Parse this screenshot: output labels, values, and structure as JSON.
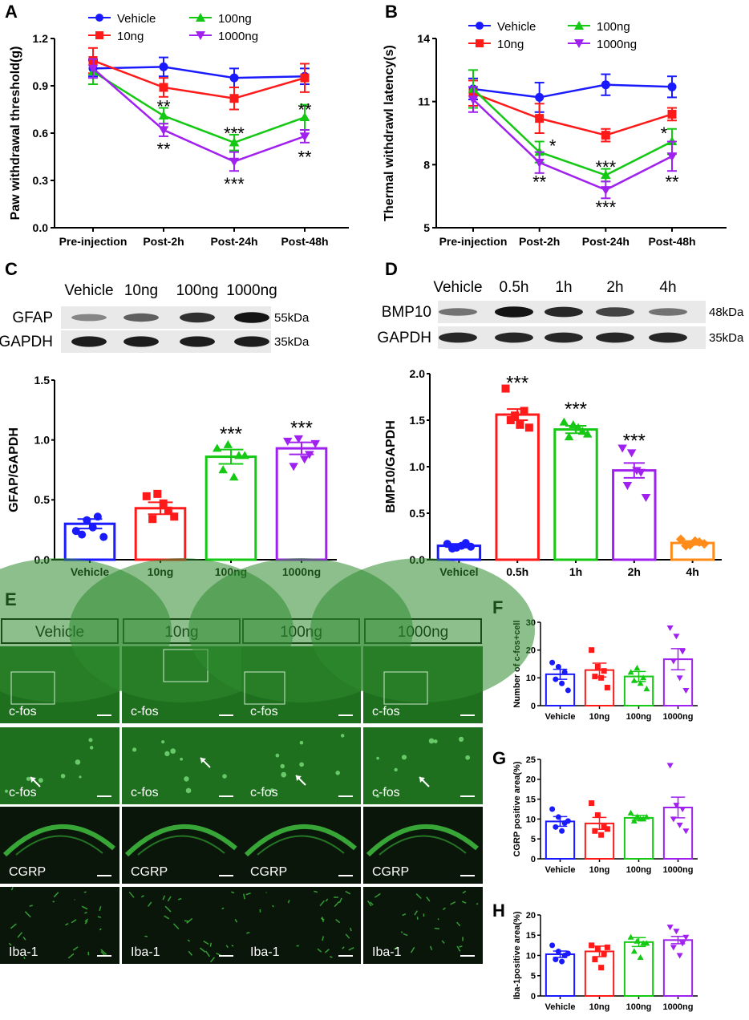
{
  "colors": {
    "vehicle": "#1a1aff",
    "ng10": "#ff1a1a",
    "ng100": "#14c814",
    "ng1000": "#a020f0",
    "h4": "#ff8c1a",
    "tissue": "#1e6f1e",
    "tissue_dark": "#0a160a"
  },
  "panels": {
    "A": "A",
    "B": "B",
    "C": "C",
    "D": "D",
    "E": "E",
    "F": "F",
    "G": "G",
    "H": "H"
  },
  "chart_data": [
    {
      "id": "A",
      "type": "line",
      "ylabel": "Paw withdrawal threshold(g)",
      "categories": [
        "Pre-injection",
        "Post-2h",
        "Post-24h",
        "Post-48h"
      ],
      "ylim": [
        0,
        1.2
      ],
      "yticks": [
        "0.0",
        "0.3",
        "0.6",
        "0.9",
        "1.2"
      ],
      "ytick_values": [
        0,
        0.3,
        0.6,
        0.9,
        1.2
      ],
      "series": [
        {
          "name": "Vehicle",
          "color": "vehicle",
          "marker": "circle",
          "values": [
            1.01,
            1.02,
            0.95,
            0.96
          ],
          "errors": [
            0.05,
            0.06,
            0.06,
            0.05
          ]
        },
        {
          "name": "10ng",
          "color": "ng10",
          "marker": "square",
          "values": [
            1.06,
            0.89,
            0.82,
            0.95
          ],
          "errors": [
            0.08,
            0.06,
            0.07,
            0.09
          ]
        },
        {
          "name": "100ng",
          "color": "ng100",
          "marker": "triangle",
          "values": [
            0.99,
            0.71,
            0.54,
            0.7
          ],
          "errors": [
            0.08,
            0.05,
            0.05,
            0.08
          ]
        },
        {
          "name": "1000ng",
          "color": "ng1000",
          "marker": "triangle-down",
          "values": [
            1.01,
            0.62,
            0.42,
            0.58
          ],
          "errors": [
            0.06,
            0.04,
            0.06,
            0.04
          ]
        }
      ],
      "annotations": [
        {
          "text": "**",
          "x": 1,
          "y": 0.77
        },
        {
          "text": "**",
          "x": 1,
          "y": 0.5
        },
        {
          "text": "***",
          "x": 2,
          "y": 0.6
        },
        {
          "text": "***",
          "x": 2,
          "y": 0.28
        },
        {
          "text": "**",
          "x": 3,
          "y": 0.75
        },
        {
          "text": "**",
          "x": 3,
          "y": 0.45
        }
      ]
    },
    {
      "id": "B",
      "type": "line",
      "ylabel": "Thermal withdrawl latency(s)",
      "categories": [
        "Pre-injection",
        "Post-2h",
        "Post-24h",
        "Post-48h"
      ],
      "ylim": [
        5,
        14
      ],
      "yticks": [
        "5",
        "8",
        "11",
        "14"
      ],
      "ytick_values": [
        5,
        8,
        11,
        14
      ],
      "series": [
        {
          "name": "Vehicle",
          "color": "vehicle",
          "marker": "circle",
          "values": [
            11.6,
            11.2,
            11.8,
            11.7
          ],
          "errors": [
            0.5,
            0.7,
            0.5,
            0.5
          ]
        },
        {
          "name": "10ng",
          "color": "ng10",
          "marker": "square",
          "values": [
            11.4,
            10.2,
            9.4,
            10.4
          ],
          "errors": [
            0.6,
            0.7,
            0.3,
            0.3
          ]
        },
        {
          "name": "100ng",
          "color": "ng100",
          "marker": "triangle",
          "values": [
            11.6,
            8.6,
            7.5,
            9.1
          ],
          "errors": [
            0.9,
            0.5,
            0.3,
            0.6
          ]
        },
        {
          "name": "1000ng",
          "color": "ng1000",
          "marker": "triangle-down",
          "values": [
            11.1,
            8.1,
            6.8,
            8.4
          ],
          "errors": [
            0.6,
            0.5,
            0.4,
            0.7
          ]
        }
      ],
      "annotations": [
        {
          "text": "*",
          "x": 1.2,
          "y": 8.9
        },
        {
          "text": "**",
          "x": 1,
          "y": 7.2
        },
        {
          "text": "***",
          "x": 2,
          "y": 7.9
        },
        {
          "text": "***",
          "x": 2,
          "y": 6.0
        },
        {
          "text": "*",
          "x": 2.88,
          "y": 9.5
        },
        {
          "text": "**",
          "x": 3,
          "y": 7.2
        }
      ]
    },
    {
      "id": "C",
      "type": "bar",
      "ylabel": "GFAP/GAPDH",
      "categories": [
        "Vehicle",
        "10ng",
        "100ng",
        "1000ng"
      ],
      "colors": [
        "vehicle",
        "ng10",
        "ng100",
        "ng1000"
      ],
      "ylim": [
        0,
        1.5
      ],
      "yticks": [
        "0.0",
        "0.5",
        "1.0",
        "1.5"
      ],
      "ytick_values": [
        0,
        0.5,
        1.0,
        1.5
      ],
      "values": [
        0.3,
        0.43,
        0.86,
        0.93
      ],
      "errors": [
        0.04,
        0.05,
        0.06,
        0.05
      ],
      "points": [
        [
          0.24,
          0.33,
          0.36,
          0.21,
          0.27,
          0.19
        ],
        [
          0.53,
          0.55,
          0.41,
          0.34,
          0.47,
          0.36
        ],
        [
          0.93,
          0.96,
          0.87,
          0.75,
          0.69,
          0.87
        ],
        [
          0.99,
          1.01,
          0.88,
          0.78,
          0.84,
          0.97
        ]
      ],
      "annotations": [
        {
          "text": "***",
          "x": 2,
          "y": 1.05
        },
        {
          "text": "***",
          "x": 3,
          "y": 1.1
        }
      ],
      "blot": {
        "lanes": [
          "Vehicle",
          "10ng",
          "100ng",
          "1000ng"
        ],
        "rows": [
          {
            "label": "GFAP",
            "kda": "55kDa",
            "intensity": [
              0.35,
              0.55,
              0.8,
              0.95
            ]
          },
          {
            "label": "GAPDH",
            "kda": "35kDa",
            "intensity": [
              0.9,
              0.9,
              0.9,
              0.9
            ]
          }
        ]
      }
    },
    {
      "id": "D",
      "type": "bar",
      "ylabel": "BMP10/GAPDH",
      "categories": [
        "Vehicel",
        "0.5h",
        "1h",
        "2h",
        "4h"
      ],
      "colors": [
        "vehicle",
        "ng10",
        "ng100",
        "ng1000",
        "h4"
      ],
      "ylim": [
        0,
        2.0
      ],
      "yticks": [
        "0.0",
        "0.5",
        "1.0",
        "1.5",
        "2.0"
      ],
      "ytick_values": [
        0,
        0.5,
        1.0,
        1.5,
        2.0
      ],
      "values": [
        0.15,
        1.56,
        1.4,
        0.96,
        0.18
      ],
      "errors": [
        0.02,
        0.06,
        0.04,
        0.08,
        0.02
      ],
      "points": [
        [
          0.17,
          0.13,
          0.18,
          0.12,
          0.15,
          0.14
        ],
        [
          1.84,
          1.55,
          1.6,
          1.5,
          1.45,
          1.42
        ],
        [
          1.48,
          1.45,
          1.38,
          1.32,
          1.42,
          1.35
        ],
        [
          1.2,
          1.15,
          0.94,
          0.8,
          0.96,
          0.67
        ],
        [
          0.22,
          0.16,
          0.19,
          0.15,
          0.2,
          0.17
        ]
      ],
      "annotations": [
        {
          "text": "***",
          "x": 1,
          "y": 1.9
        },
        {
          "text": "***",
          "x": 2,
          "y": 1.62
        },
        {
          "text": "***",
          "x": 3,
          "y": 1.28
        }
      ],
      "blot": {
        "lanes": [
          "Vehicle",
          "0.5h",
          "1h",
          "2h",
          "4h"
        ],
        "rows": [
          {
            "label": "BMP10",
            "kda": "48kDa",
            "intensity": [
              0.45,
              0.95,
              0.85,
              0.7,
              0.45
            ]
          },
          {
            "label": "GAPDH",
            "kda": "35kDa",
            "intensity": [
              0.85,
              0.85,
              0.85,
              0.85,
              0.85
            ]
          }
        ]
      }
    },
    {
      "id": "F",
      "type": "bar",
      "ylabel": "Number of c-fos+cell",
      "categories": [
        "Vehicle",
        "10ng",
        "100ng",
        "1000ng"
      ],
      "colors": [
        "vehicle",
        "ng10",
        "ng100",
        "ng1000"
      ],
      "ylim": [
        0,
        30
      ],
      "yticks": [
        "0",
        "10",
        "20",
        "30"
      ],
      "ytick_values": [
        0,
        10,
        20,
        30
      ],
      "values": [
        11.3,
        12.8,
        10.5,
        16.7
      ],
      "errors": [
        1.8,
        2.5,
        1.8,
        3.8
      ],
      "points": [
        [
          15.5,
          14.0,
          12.0,
          9.5,
          8.0,
          5.5
        ],
        [
          20.0,
          14.0,
          12.5,
          10.5,
          10.0,
          6.5
        ],
        [
          12.0,
          13.5,
          10.0,
          9.0,
          8.0,
          6.0
        ],
        [
          28.0,
          25.0,
          19.5,
          16.0,
          10.0,
          5.5
        ]
      ],
      "annotations": []
    },
    {
      "id": "G",
      "type": "bar",
      "ylabel": "CGRP positive area(%)",
      "categories": [
        "Vehicle",
        "10ng",
        "100ng",
        "1000ng"
      ],
      "colors": [
        "vehicle",
        "ng10",
        "ng100",
        "ng1000"
      ],
      "ylim": [
        0,
        25
      ],
      "yticks": [
        "0",
        "5",
        "10",
        "15",
        "20",
        "25"
      ],
      "ytick_values": [
        0,
        5,
        10,
        15,
        20,
        25
      ],
      "values": [
        9.4,
        8.9,
        10.3,
        12.9
      ],
      "errors": [
        1.2,
        1.5,
        0.6,
        2.6
      ],
      "points": [
        [
          12.5,
          10.5,
          9.0,
          8.0,
          7.0,
          9.5
        ],
        [
          14.0,
          11.0,
          8.0,
          7.0,
          6.0,
          7.5
        ],
        [
          11.5,
          10.5,
          10.0,
          9.5,
          10.0,
          10.5
        ],
        [
          23.5,
          13.5,
          12.5,
          10.0,
          8.5,
          7.0
        ]
      ],
      "annotations": []
    },
    {
      "id": "H",
      "type": "bar",
      "ylabel": "Iba-1positive area(%)",
      "categories": [
        "Vehicle",
        "10ng",
        "100ng",
        "1000ng"
      ],
      "colors": [
        "vehicle",
        "ng10",
        "ng100",
        "ng1000"
      ],
      "ylim": [
        0,
        20
      ],
      "yticks": [
        "0",
        "5",
        "10",
        "15",
        "20"
      ],
      "ytick_values": [
        0,
        5,
        10,
        15,
        20
      ],
      "values": [
        10.3,
        11.0,
        13.3,
        13.8
      ],
      "errors": [
        0.8,
        1.3,
        1.1,
        0.9
      ],
      "points": [
        [
          12.5,
          11.0,
          10.0,
          9.0,
          8.5,
          10.5
        ],
        [
          12.5,
          11.5,
          10.5,
          9.0,
          7.0,
          12.0
        ],
        [
          14.5,
          13.5,
          13.0,
          11.0,
          9.5,
          13.0
        ],
        [
          17.0,
          16.0,
          13.0,
          12.0,
          10.0,
          14.5
        ]
      ],
      "annotations": []
    }
  ],
  "microscopy": {
    "columns": [
      "Vehicle",
      "10ng",
      "100ng",
      "1000ng"
    ],
    "rows": [
      {
        "stain": "c-fos",
        "kind": "low"
      },
      {
        "stain": "c-fos",
        "kind": "zoom"
      },
      {
        "stain": "CGRP",
        "kind": "cgrp"
      },
      {
        "stain": "Iba-1",
        "kind": "iba"
      }
    ]
  }
}
